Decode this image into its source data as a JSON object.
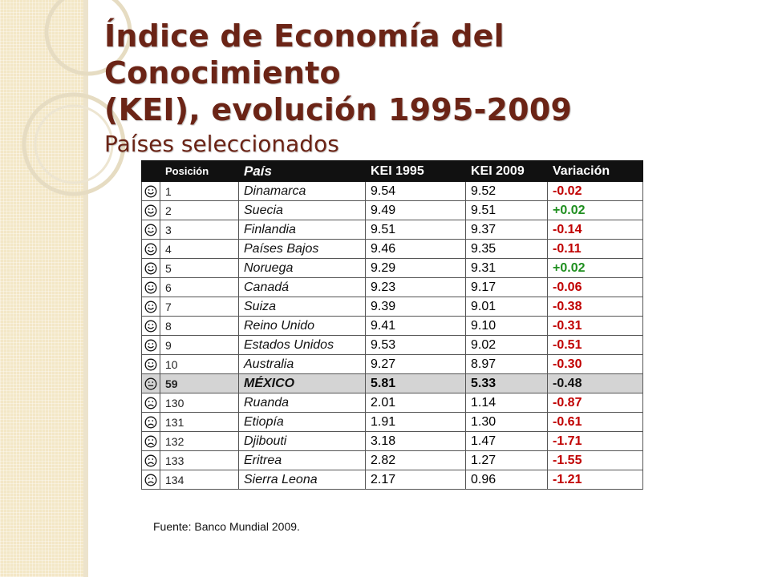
{
  "title": {
    "line1": "Índice de Economía del Conocimiento",
    "line2": "(KEI), evolución 1995-2009",
    "subtitle": "Países seleccionados"
  },
  "table": {
    "headers": {
      "position": "Posición",
      "country": "País",
      "kei1995": "KEI 1995",
      "kei2009": "KEI 2009",
      "variation": "Variación"
    },
    "rows": [
      {
        "face": "happy-face-icon",
        "rank": "1",
        "country": "Dinamarca",
        "kei1995": "9.54",
        "kei2009": "9.52",
        "variation": "-0.02",
        "trend": "neg"
      },
      {
        "face": "happy-face-icon",
        "rank": "2",
        "country": "Suecia",
        "kei1995": "9.49",
        "kei2009": "9.51",
        "variation": "+0.02",
        "trend": "pos"
      },
      {
        "face": "happy-face-icon",
        "rank": "3",
        "country": "Finlandia",
        "kei1995": "9.51",
        "kei2009": "9.37",
        "variation": "-0.14",
        "trend": "neg"
      },
      {
        "face": "happy-face-icon",
        "rank": "4",
        "country": "Países Bajos",
        "kei1995": "9.46",
        "kei2009": "9.35",
        "variation": "-0.11",
        "trend": "neg"
      },
      {
        "face": "happy-face-icon",
        "rank": "5",
        "country": "Noruega",
        "kei1995": "9.29",
        "kei2009": "9.31",
        "variation": "+0.02",
        "trend": "pos"
      },
      {
        "face": "happy-face-icon",
        "rank": "6",
        "country": "Canadá",
        "kei1995": "9.23",
        "kei2009": "9.17",
        "variation": "-0.06",
        "trend": "neg"
      },
      {
        "face": "happy-face-icon",
        "rank": "7",
        "country": "Suiza",
        "kei1995": "9.39",
        "kei2009": "9.01",
        "variation": "-0.38",
        "trend": "neg"
      },
      {
        "face": "happy-face-icon",
        "rank": "8",
        "country": "Reino Unido",
        "kei1995": "9.41",
        "kei2009": "9.10",
        "variation": "-0.31",
        "trend": "neg"
      },
      {
        "face": "happy-face-icon",
        "rank": "9",
        "country": "Estados Unidos",
        "kei1995": "9.53",
        "kei2009": "9.02",
        "variation": "-0.51",
        "trend": "neg"
      },
      {
        "face": "happy-face-icon",
        "rank": "10",
        "country": "Australia",
        "kei1995": "9.27",
        "kei2009": "8.97",
        "variation": "-0.30",
        "trend": "neg"
      },
      {
        "face": "neutral-face-icon",
        "rank": "59",
        "country": "MÉXICO",
        "kei1995": "5.81",
        "kei2009": "5.33",
        "variation": "-0.48",
        "trend": "mx",
        "highlight": true
      },
      {
        "face": "sad-face-icon",
        "rank": "130",
        "country": "Ruanda",
        "kei1995": "2.01",
        "kei2009": "1.14",
        "variation": "-0.87",
        "trend": "neg"
      },
      {
        "face": "sad-face-icon",
        "rank": "131",
        "country": "Etiopía",
        "kei1995": "1.91",
        "kei2009": "1.30",
        "variation": "-0.61",
        "trend": "neg"
      },
      {
        "face": "sad-face-icon",
        "rank": "132",
        "country": "Djibouti",
        "kei1995": "3.18",
        "kei2009": "1.47",
        "variation": "-1.71",
        "trend": "neg"
      },
      {
        "face": "sad-face-icon",
        "rank": "133",
        "country": "Eritrea",
        "kei1995": "2.82",
        "kei2009": "1.27",
        "variation": "-1.55",
        "trend": "neg"
      },
      {
        "face": "sad-face-icon",
        "rank": "134",
        "country": "Sierra Leona",
        "kei1995": "2.17",
        "kei2009": "0.96",
        "variation": "-1.21",
        "trend": "neg"
      }
    ]
  },
  "source": "Fuente: Banco Mundial 2009.",
  "colors": {
    "title": "#6b2416",
    "negative": "#c00000",
    "positive": "#1f8f1f",
    "highlight_row": "#d4d4d4",
    "left_band": "#f3e7c6"
  }
}
